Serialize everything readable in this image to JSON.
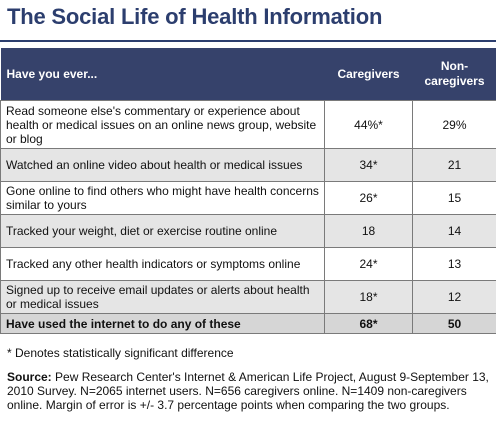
{
  "title": "The Social Life of Health Information",
  "table": {
    "headers": [
      "Have you ever...",
      "Caregivers",
      "Non-caregivers"
    ],
    "rows": [
      {
        "label": "Read someone else's commentary or experience about health or medical issues on an online news group, website or blog",
        "caregivers": "44%*",
        "non_caregivers": "29%"
      },
      {
        "label": "Watched an online video about health or medical issues",
        "caregivers": "34*",
        "non_caregivers": "21"
      },
      {
        "label": "Gone online to find others who might have health concerns similar to yours",
        "caregivers": "26*",
        "non_caregivers": "15"
      },
      {
        "label": "Tracked your weight, diet or exercise routine online",
        "caregivers": "18",
        "non_caregivers": "14"
      },
      {
        "label": "Tracked any other health indicators or symptoms online",
        "caregivers": "24*",
        "non_caregivers": "13"
      },
      {
        "label": "Signed up to receive email updates or alerts about health or medical issues",
        "caregivers": "18*",
        "non_caregivers": "12"
      }
    ],
    "total": {
      "label": "Have used the internet to do any of these",
      "caregivers": "68*",
      "non_caregivers": "50"
    }
  },
  "footnote": "* Denotes statistically significant difference",
  "source": {
    "label": "Source:",
    "text": "Pew Research Center's Internet & American Life Project, August 9-September 13, 2010 Survey. N=2065 internet users. N=656 caregivers online. N=1409 non-caregivers online.  Margin of error is +/- 3.7 percentage points when comparing the two groups."
  }
}
